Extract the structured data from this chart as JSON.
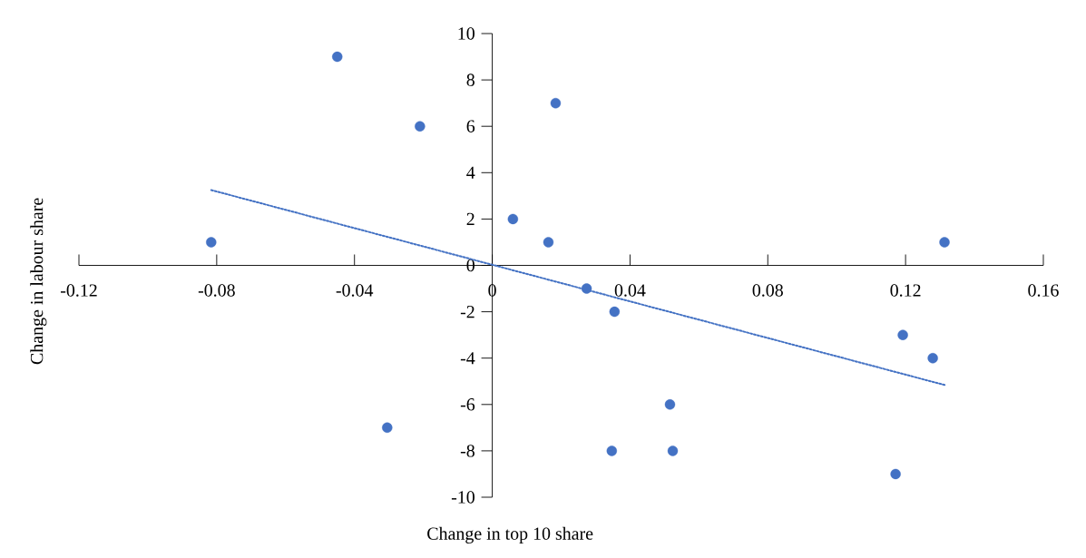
{
  "chart_data": {
    "type": "scatter",
    "xlabel": "Change in top 10 share",
    "ylabel": "Change in labour share",
    "xlim": [
      -0.12,
      0.16
    ],
    "ylim": [
      -10,
      10
    ],
    "xticks": [
      -0.12,
      -0.08,
      -0.04,
      0,
      0.04,
      0.08,
      0.12,
      0.16
    ],
    "yticks": [
      -10,
      -8,
      -6,
      -4,
      -2,
      0,
      2,
      4,
      6,
      8,
      10
    ],
    "grid": false,
    "series": [
      {
        "color": "#4472c4",
        "marker": "circle",
        "x": [
          -0.0816,
          -0.045,
          -0.021,
          -0.0305,
          0.006,
          0.0163,
          0.0184,
          0.0274,
          0.0355,
          0.0347,
          0.0516,
          0.0524,
          0.1192,
          0.1279,
          0.1171,
          0.1313
        ],
        "values": [
          1,
          9,
          6,
          -7,
          2,
          1,
          7,
          -1,
          -2,
          -8,
          -6,
          -8,
          -3,
          -4,
          -9,
          1
        ]
      },
      {
        "type": "line",
        "color": "#4472c4",
        "line_style": "dotted",
        "marker": "none",
        "x": [
          -0.0816,
          0.1316
        ],
        "values": [
          3.25,
          -5.17
        ]
      }
    ]
  }
}
